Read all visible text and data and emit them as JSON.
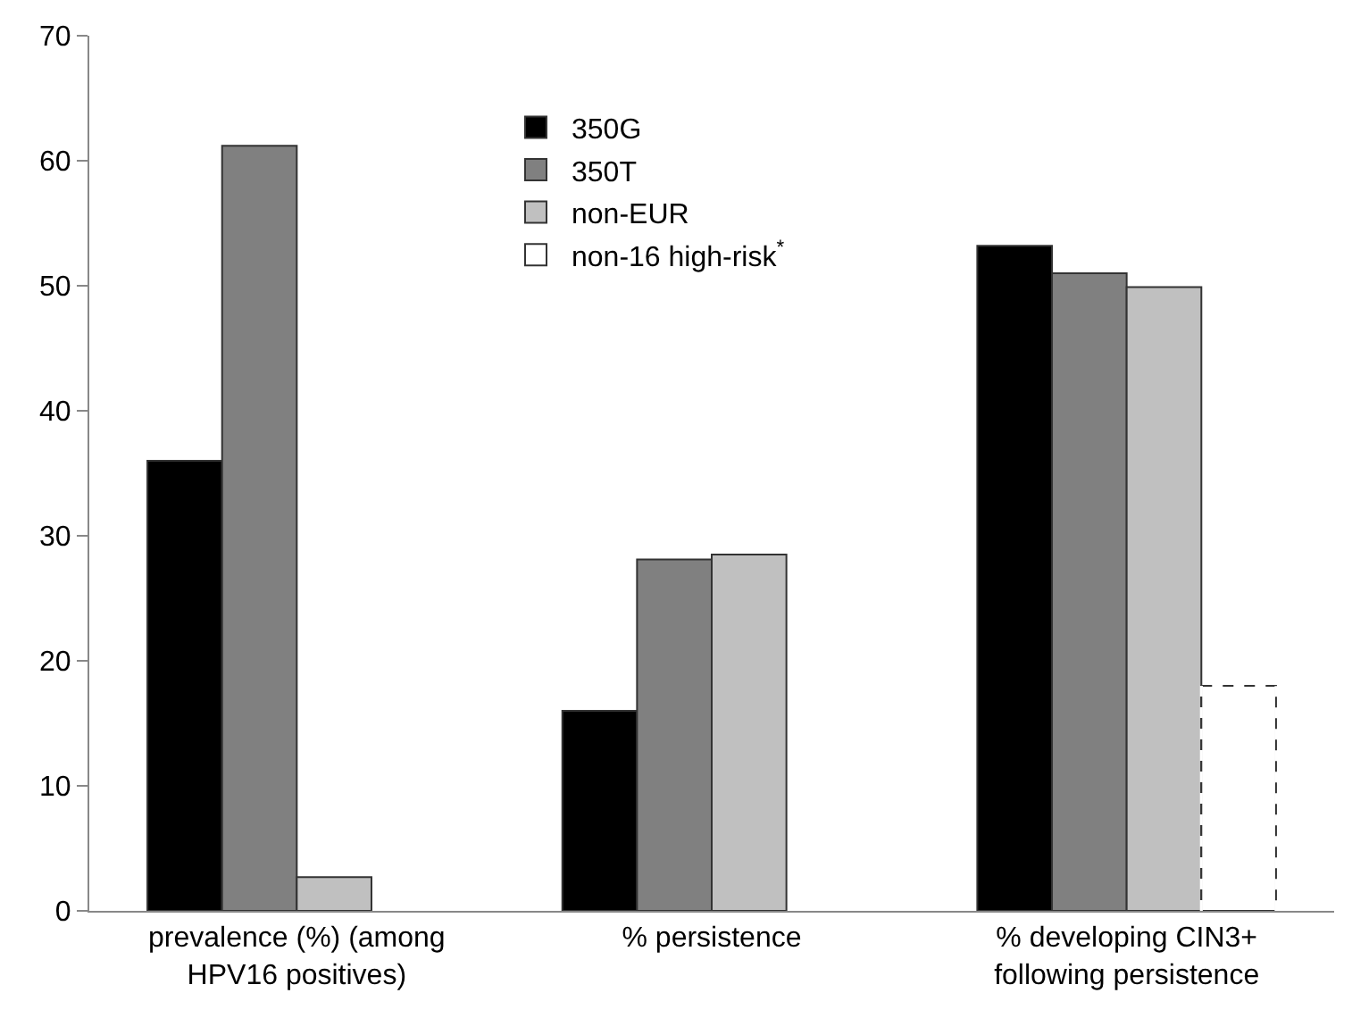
{
  "chart_data": {
    "type": "bar",
    "categories": [
      "prevalence (%) (among\nHPV16 positives)",
      "% persistence",
      "% developing CIN3+\nfollowing persistence"
    ],
    "series": [
      {
        "name": "350G",
        "color": "#000000",
        "values": [
          36.0,
          16.0,
          53.2
        ]
      },
      {
        "name": "350T",
        "color": "#808080",
        "values": [
          61.2,
          28.1,
          51.0
        ]
      },
      {
        "name": "non-EUR",
        "color": "#c0c0c0",
        "values": [
          2.7,
          28.5,
          49.9
        ]
      },
      {
        "name": "non-16 high-risk$^{*}$",
        "color": "#ffffff",
        "line_style": "dashed",
        "values": [
          null,
          null,
          18.0
        ]
      }
    ],
    "ylim": [
      0,
      70
    ],
    "yticks": [
      0,
      10,
      20,
      30,
      40,
      50,
      60,
      70
    ],
    "legend": "top"
  }
}
